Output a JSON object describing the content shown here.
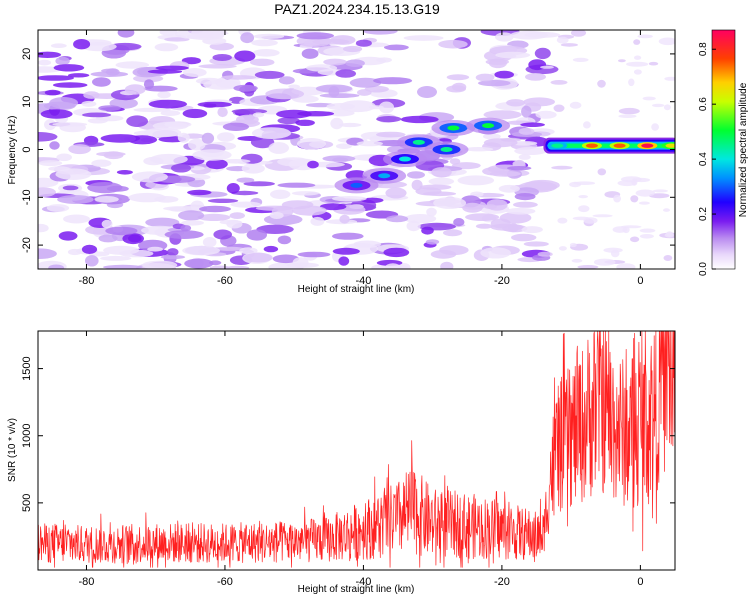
{
  "figure_title": "PAZ1.2024.234.15.13.G19",
  "chart_data": [
    {
      "type": "heatmap",
      "title": "PAZ1.2024.234.15.13.G19",
      "xlabel": "Height of straight line (km)",
      "ylabel": "Frequency (Hz)",
      "xlim": [
        -87,
        5
      ],
      "ylim": [
        -25,
        25
      ],
      "xticks": [
        -80,
        -60,
        -40,
        -20,
        0
      ],
      "yticks": [
        -20,
        -10,
        0,
        10,
        20
      ],
      "colorbar": {
        "label": "Normalized spectral amplitude",
        "range": [
          0.0,
          0.87
        ],
        "ticks": [
          0.0,
          0.2,
          0.4,
          0.6,
          0.8
        ],
        "colors": [
          "#ffffff",
          "#c9a8f5",
          "#8a2be2",
          "#1e00ff",
          "#00d0ff",
          "#00ff40",
          "#ffff00",
          "#ff4000",
          "#ff0040"
        ]
      },
      "grid": false,
      "description_features": {
        "noise_band_freq_range_hz": [
          -25,
          25
        ],
        "noise_height_range_km": [
          -87,
          -14
        ],
        "ridge": [
          {
            "height_km": -41,
            "freq_hz": -7.5,
            "amp": 0.3
          },
          {
            "height_km": -37,
            "freq_hz": -5.5,
            "amp": 0.35
          },
          {
            "height_km": -34,
            "freq_hz": -2,
            "amp": 0.4
          },
          {
            "height_km": -32,
            "freq_hz": 1.5,
            "amp": 0.45
          },
          {
            "height_km": -28,
            "freq_hz": 0,
            "amp": 0.45
          },
          {
            "height_km": -27,
            "freq_hz": 4.5,
            "amp": 0.5
          },
          {
            "height_km": -22,
            "freq_hz": 5,
            "amp": 0.5
          }
        ],
        "tone_freq_hz": 0.8,
        "tone_height_range_km": [
          -14,
          5
        ],
        "tone_peaks": [
          {
            "height_km": -12,
            "amp": 0.45
          },
          {
            "height_km": -7,
            "amp": 0.75
          },
          {
            "height_km": -3,
            "amp": 0.75
          },
          {
            "height_km": 1,
            "amp": 0.85
          },
          {
            "height_km": 4.5,
            "amp": 0.65
          }
        ]
      }
    },
    {
      "type": "line",
      "xlabel": "Height of straight line (km)",
      "ylabel": "SNR (10 * v/v)",
      "xlim": [
        -87,
        5
      ],
      "ylim": [
        0,
        1780
      ],
      "xticks": [
        -80,
        -60,
        -40,
        -20,
        0
      ],
      "yticks": [
        500,
        1000,
        1500
      ],
      "color": "#ff2020",
      "grid": false,
      "series": [
        {
          "x": [
            -87,
            -80,
            -70,
            -60,
            -50,
            -45,
            -40,
            -35,
            -33,
            -30,
            -25,
            -20,
            -15,
            -14,
            -13,
            -12,
            -10,
            -8,
            -6,
            -4,
            -2,
            0,
            2,
            3,
            4,
            5
          ],
          "y": [
            200,
            190,
            200,
            200,
            210,
            230,
            300,
            380,
            450,
            350,
            330,
            300,
            250,
            260,
            700,
            900,
            1000,
            1100,
            1300,
            1100,
            1000,
            1100,
            1200,
            1450,
            1650,
            1200
          ]
        }
      ]
    }
  ]
}
